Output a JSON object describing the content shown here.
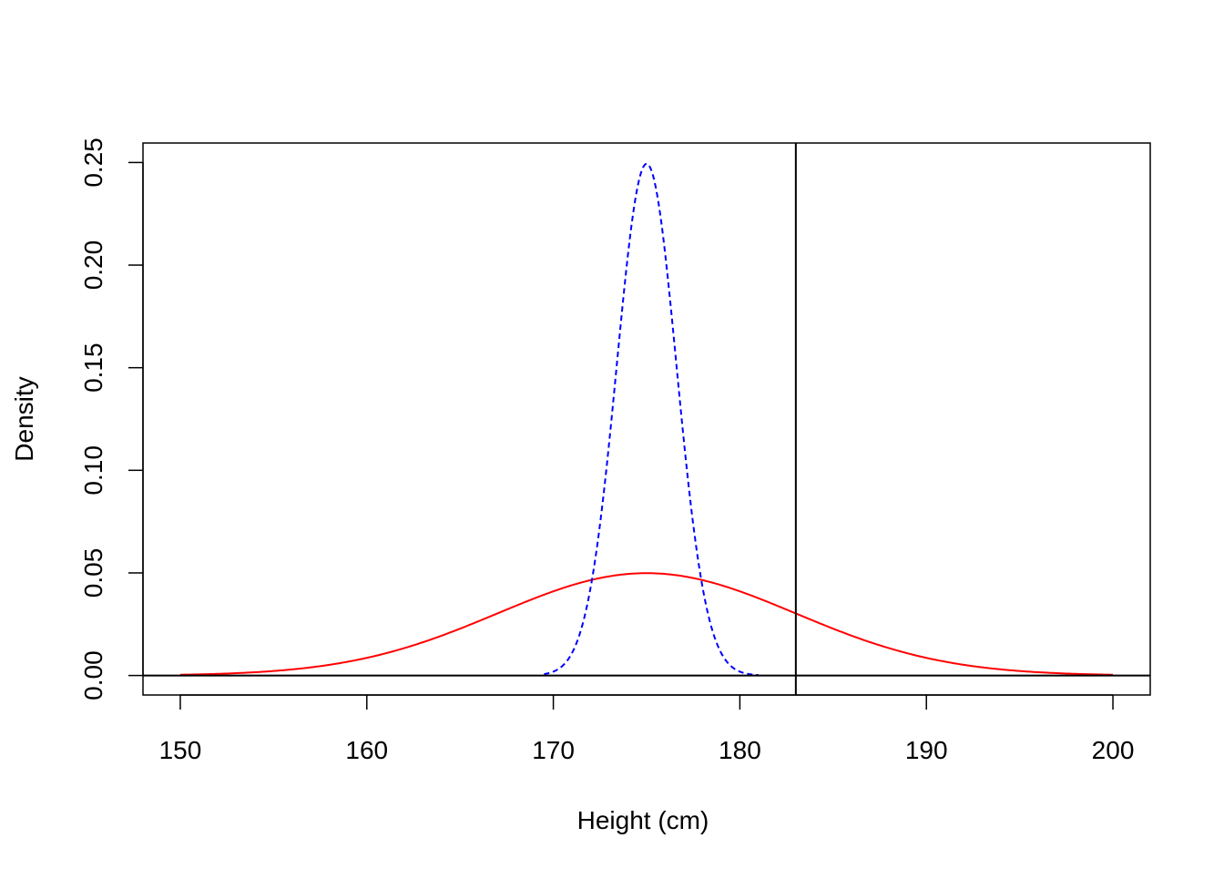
{
  "chart_data": {
    "type": "line",
    "title": "",
    "xlabel": "Height (cm)",
    "ylabel": "Density",
    "xlim": [
      148,
      202
    ],
    "ylim": [
      -0.0095,
      0.2595
    ],
    "xticks": [
      150,
      160,
      170,
      180,
      190,
      200
    ],
    "yticks": [
      0.0,
      0.05,
      0.1,
      0.15,
      0.2,
      0.25
    ],
    "xtick_labels": [
      "150",
      "160",
      "170",
      "180",
      "190",
      "200"
    ],
    "ytick_labels": [
      "0.00",
      "0.05",
      "0.10",
      "0.15",
      "0.20",
      "0.25"
    ],
    "grid": false,
    "legend": false,
    "series": [
      {
        "color": "#ff0000",
        "linestyle": "solid",
        "distribution": "normal",
        "mean": 175,
        "sd": 8,
        "x_range": [
          150,
          200
        ]
      },
      {
        "color": "#0000ff",
        "linestyle": "dashed",
        "distribution": "normal",
        "mean": 175,
        "sd": 1.6,
        "x_range": [
          169.5,
          181
        ]
      }
    ],
    "reference_lines": [
      {
        "orientation": "vertical",
        "x": 183,
        "color": "#000000"
      },
      {
        "orientation": "horizontal",
        "y": 0,
        "color": "#000000"
      }
    ]
  }
}
